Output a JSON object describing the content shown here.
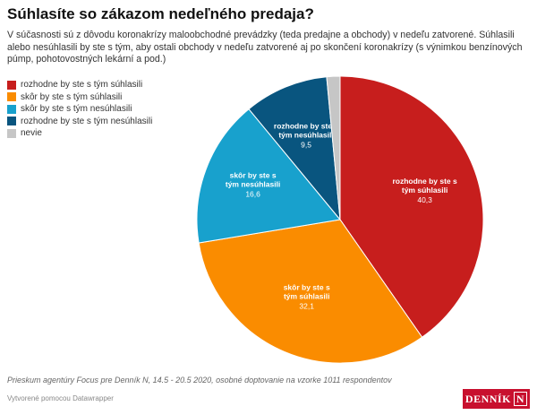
{
  "title": "Súhlasíte so zákazom nedeľného predaja?",
  "description": "V súčasnosti sú z dôvodu koronakrízy maloobchodné prevádzky (teda predajne a obchody) v nedeľu zatvorené. Súhlasili alebo nesúhlasili by ste s tým, aby ostali obchody v nedeľu zatvorené aj po skončení koronakrízy (s výnimkou benzínových púmp, pohotovostných lekární a pod.)",
  "source": "Prieskum agentúry Focus pre Denník N, 14.5 - 20.5 2020, osobné doptovanie na vzorke 1011 respondentov",
  "credit": "Vytvorené pomocou Datawrapper",
  "logo_text": "DENNÍK N",
  "chart_data": {
    "type": "pie",
    "legend_placement": "top-left",
    "slices": [
      {
        "name": "rozhodne by ste s tým súhlasili",
        "value": 40.3,
        "label": "40,3",
        "color": "#c71e1d"
      },
      {
        "name": "skôr by ste s tým súhlasili",
        "value": 32.1,
        "label": "32,1",
        "color": "#fa8c00"
      },
      {
        "name": "skôr by ste s tým nesúhlasili",
        "value": 16.6,
        "label": "16,6",
        "color": "#18a1cd"
      },
      {
        "name": "rozhodne by ste s tým nesúhlasili",
        "value": 9.5,
        "label": "9,5",
        "color": "#09557f"
      },
      {
        "name": "nevie",
        "value": 1.5,
        "color": "#c6c6c6"
      }
    ]
  }
}
